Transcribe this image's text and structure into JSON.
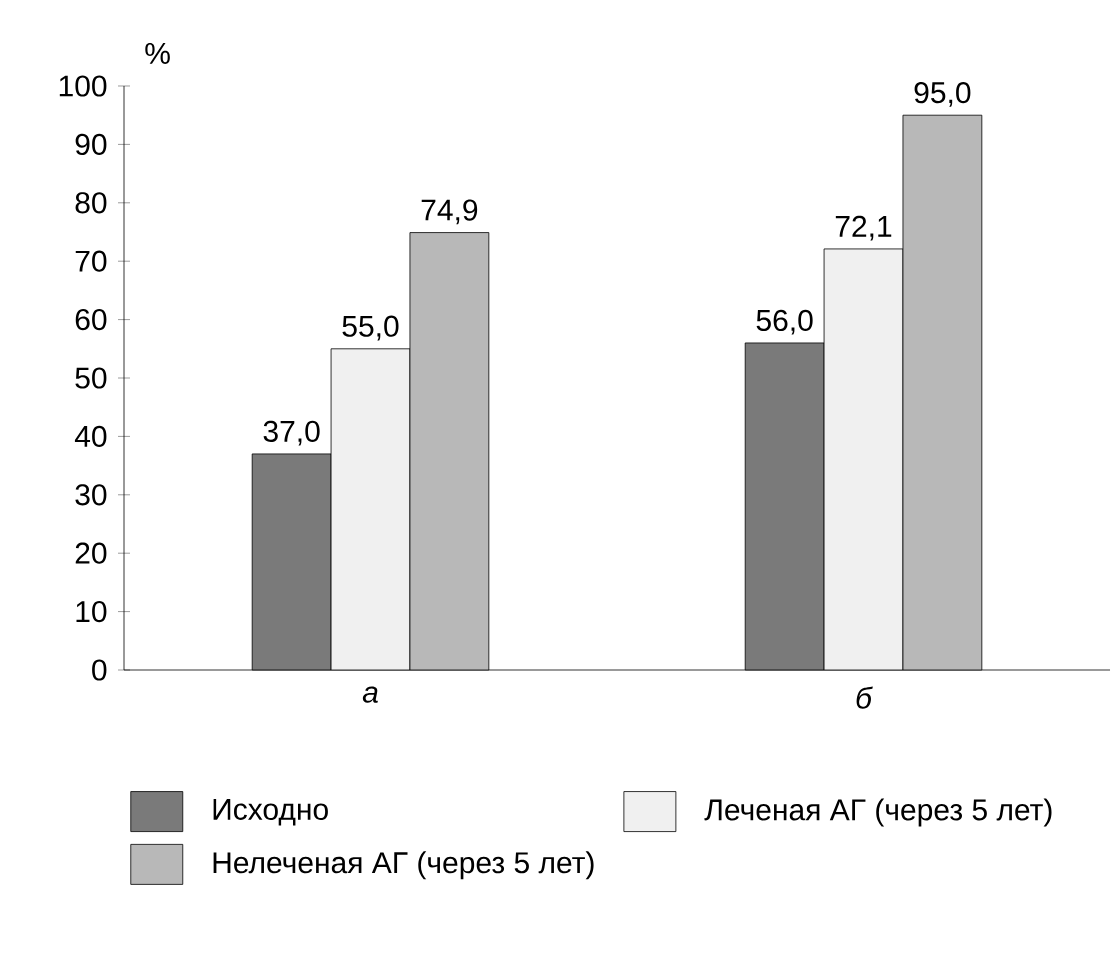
{
  "chart_data": {
    "type": "bar",
    "ylabel": "%",
    "categories": [
      "а",
      "б"
    ],
    "series": [
      {
        "name": "Исходно",
        "color": "#7a7a7a",
        "values": [
          37.0,
          56.0
        ],
        "value_labels": [
          "37,0",
          "56,0"
        ]
      },
      {
        "name": "Леченая АГ (через 5 лет)",
        "color": "#f0f0f0",
        "values": [
          55.0,
          72.1
        ],
        "value_labels": [
          "55,0",
          "72,1"
        ]
      },
      {
        "name": "Нелеченая АГ (через 5 лет)",
        "color": "#b8b8b8",
        "values": [
          74.9,
          95.0
        ],
        "value_labels": [
          "74,9",
          "95,0"
        ]
      }
    ],
    "ylim": [
      0,
      100
    ],
    "yticks": [
      0,
      10,
      20,
      30,
      40,
      50,
      60,
      70,
      80,
      90,
      100
    ],
    "legend": "bottom"
  }
}
